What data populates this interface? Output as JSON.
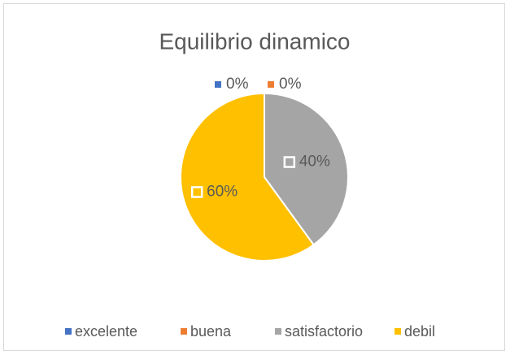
{
  "chart_data": {
    "type": "pie",
    "title": "Equilibrio dinamico",
    "categories": [
      "excelente",
      "buena",
      "satisfactorio",
      "debil"
    ],
    "values": [
      0,
      0,
      40,
      60
    ],
    "value_labels": [
      "0%",
      "0%",
      "40%",
      "60%"
    ],
    "colors": [
      "#4472c4",
      "#ed7d31",
      "#a5a5a5",
      "#ffc000"
    ],
    "legend": "bottom"
  }
}
